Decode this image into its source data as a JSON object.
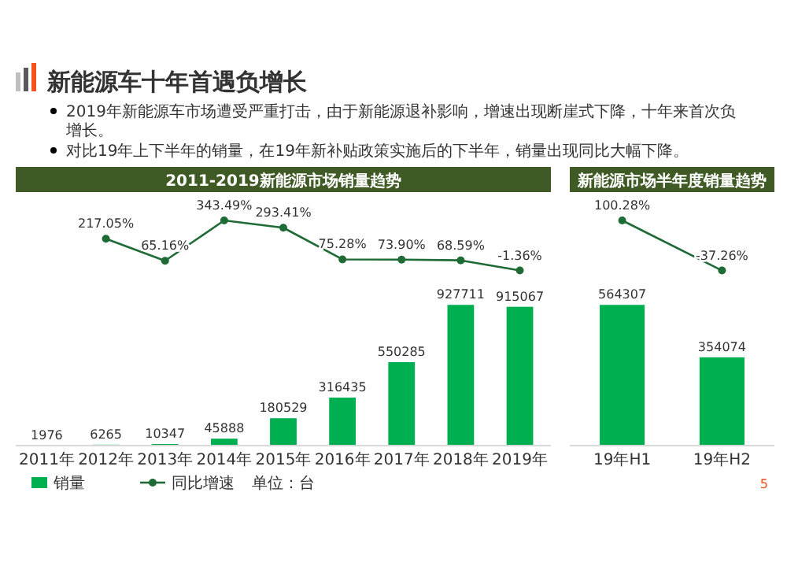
{
  "chart_data": [
    {
      "type": "other",
      "title": "新能源车十年首遇负增长",
      "annotations": [
        "2019年新能源车市场遭受严重打击，由于新能源退补影响，增速出现断崖式下降，十年来首次负增长。",
        "对比19年上下半年的销量，在19年新补贴政策实施后的下半年，销量出现同比大幅下降。",
        "单位：台",
        "5"
      ]
    },
    {
      "type": "bar",
      "categories": [
        "2011年",
        "2012年",
        "2013年",
        "2014年",
        "2015年",
        "2016年",
        "2017年",
        "2018年",
        "2019年"
      ],
      "series": [
        {
          "name": "销量",
          "color": "#00b050",
          "values": [
            1976,
            6265,
            10347,
            45888,
            180529,
            316435,
            550285,
            927711,
            915067
          ],
          "value_labels": [
            "1976",
            "6265",
            "10347",
            "45888",
            "180529",
            "316435",
            "550285",
            "927711",
            "915067"
          ]
        }
      ],
      "tick_labels": "x",
      "grid": false,
      "legend": "bottom left"
    },
    {
      "type": "line",
      "title": "2011-2019新能源市场销量趋势",
      "categories": [
        null,
        null,
        null,
        null,
        null,
        null,
        null,
        null,
        null
      ],
      "series": [
        {
          "name": "同比增速",
          "color": "#1e6b35",
          "values": [
            null,
            217.05,
            65.16,
            343.49,
            293.41,
            75.28,
            73.9,
            68.59,
            -1.36
          ],
          "value_labels": [
            null,
            "217.05%",
            "65.16%",
            "343.49%",
            "293.41%",
            "75.28%",
            "73.90%",
            "68.59%",
            "-1.36%"
          ]
        }
      ],
      "tick_labels": false,
      "grid": false,
      "legend": "bottom left",
      "marker": "circle"
    },
    {
      "type": "bar",
      "categories": [
        "19年H1",
        "19年H2"
      ],
      "series": [
        {
          "color": "#00b050",
          "values": [
            564307,
            354074
          ],
          "value_labels": [
            "564307",
            "354074"
          ]
        }
      ],
      "tick_labels": "x",
      "grid": false
    },
    {
      "type": "line",
      "title": "新能源市场半年度销量趋势",
      "categories": [
        null,
        null
      ],
      "series": [
        {
          "color": "#1e6b35",
          "values": [
            100.28,
            -37.26
          ],
          "value_labels": [
            "100.28%",
            "-37.26%"
          ]
        }
      ],
      "tick_labels": false,
      "grid": false,
      "marker": "circle"
    }
  ]
}
